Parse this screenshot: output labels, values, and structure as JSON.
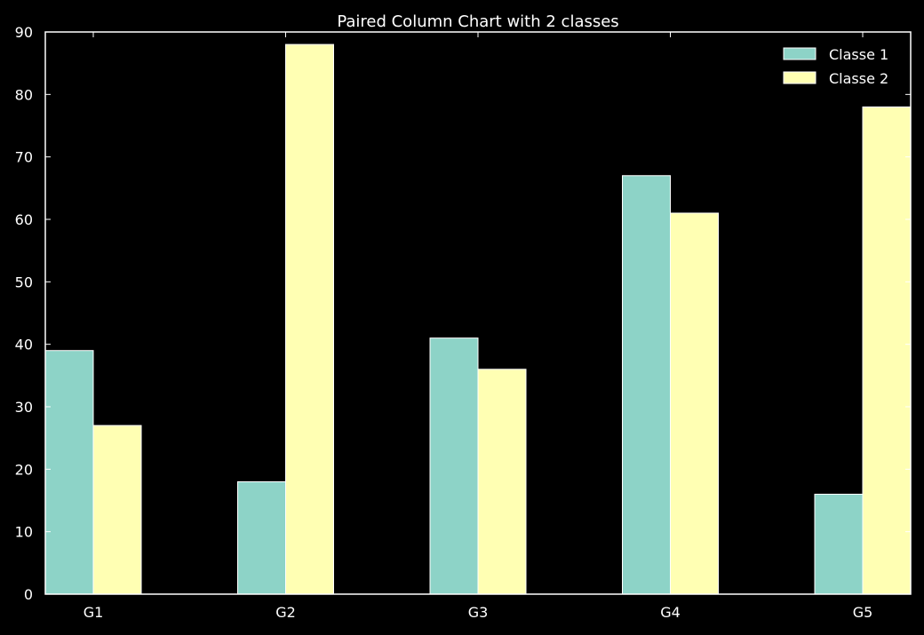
{
  "chart_data": {
    "type": "bar",
    "title": "Paired Column Chart with 2 classes",
    "xlabel": "",
    "ylabel": "",
    "categories": [
      "G1",
      "G2",
      "G3",
      "G4",
      "G5"
    ],
    "series": [
      {
        "name": "Classe 1",
        "color": "#8dd3c7",
        "values": [
          39,
          18,
          41,
          67,
          16
        ]
      },
      {
        "name": "Classe 2",
        "color": "#ffffb3",
        "values": [
          27,
          88,
          36,
          61,
          78
        ]
      }
    ],
    "ylim": [
      0,
      90
    ],
    "yticks": [
      0,
      10,
      20,
      30,
      40,
      50,
      60,
      70,
      80,
      90
    ],
    "grid": false,
    "legend_position": "top-right",
    "background": "#000000",
    "axis_color": "#ffffff"
  }
}
